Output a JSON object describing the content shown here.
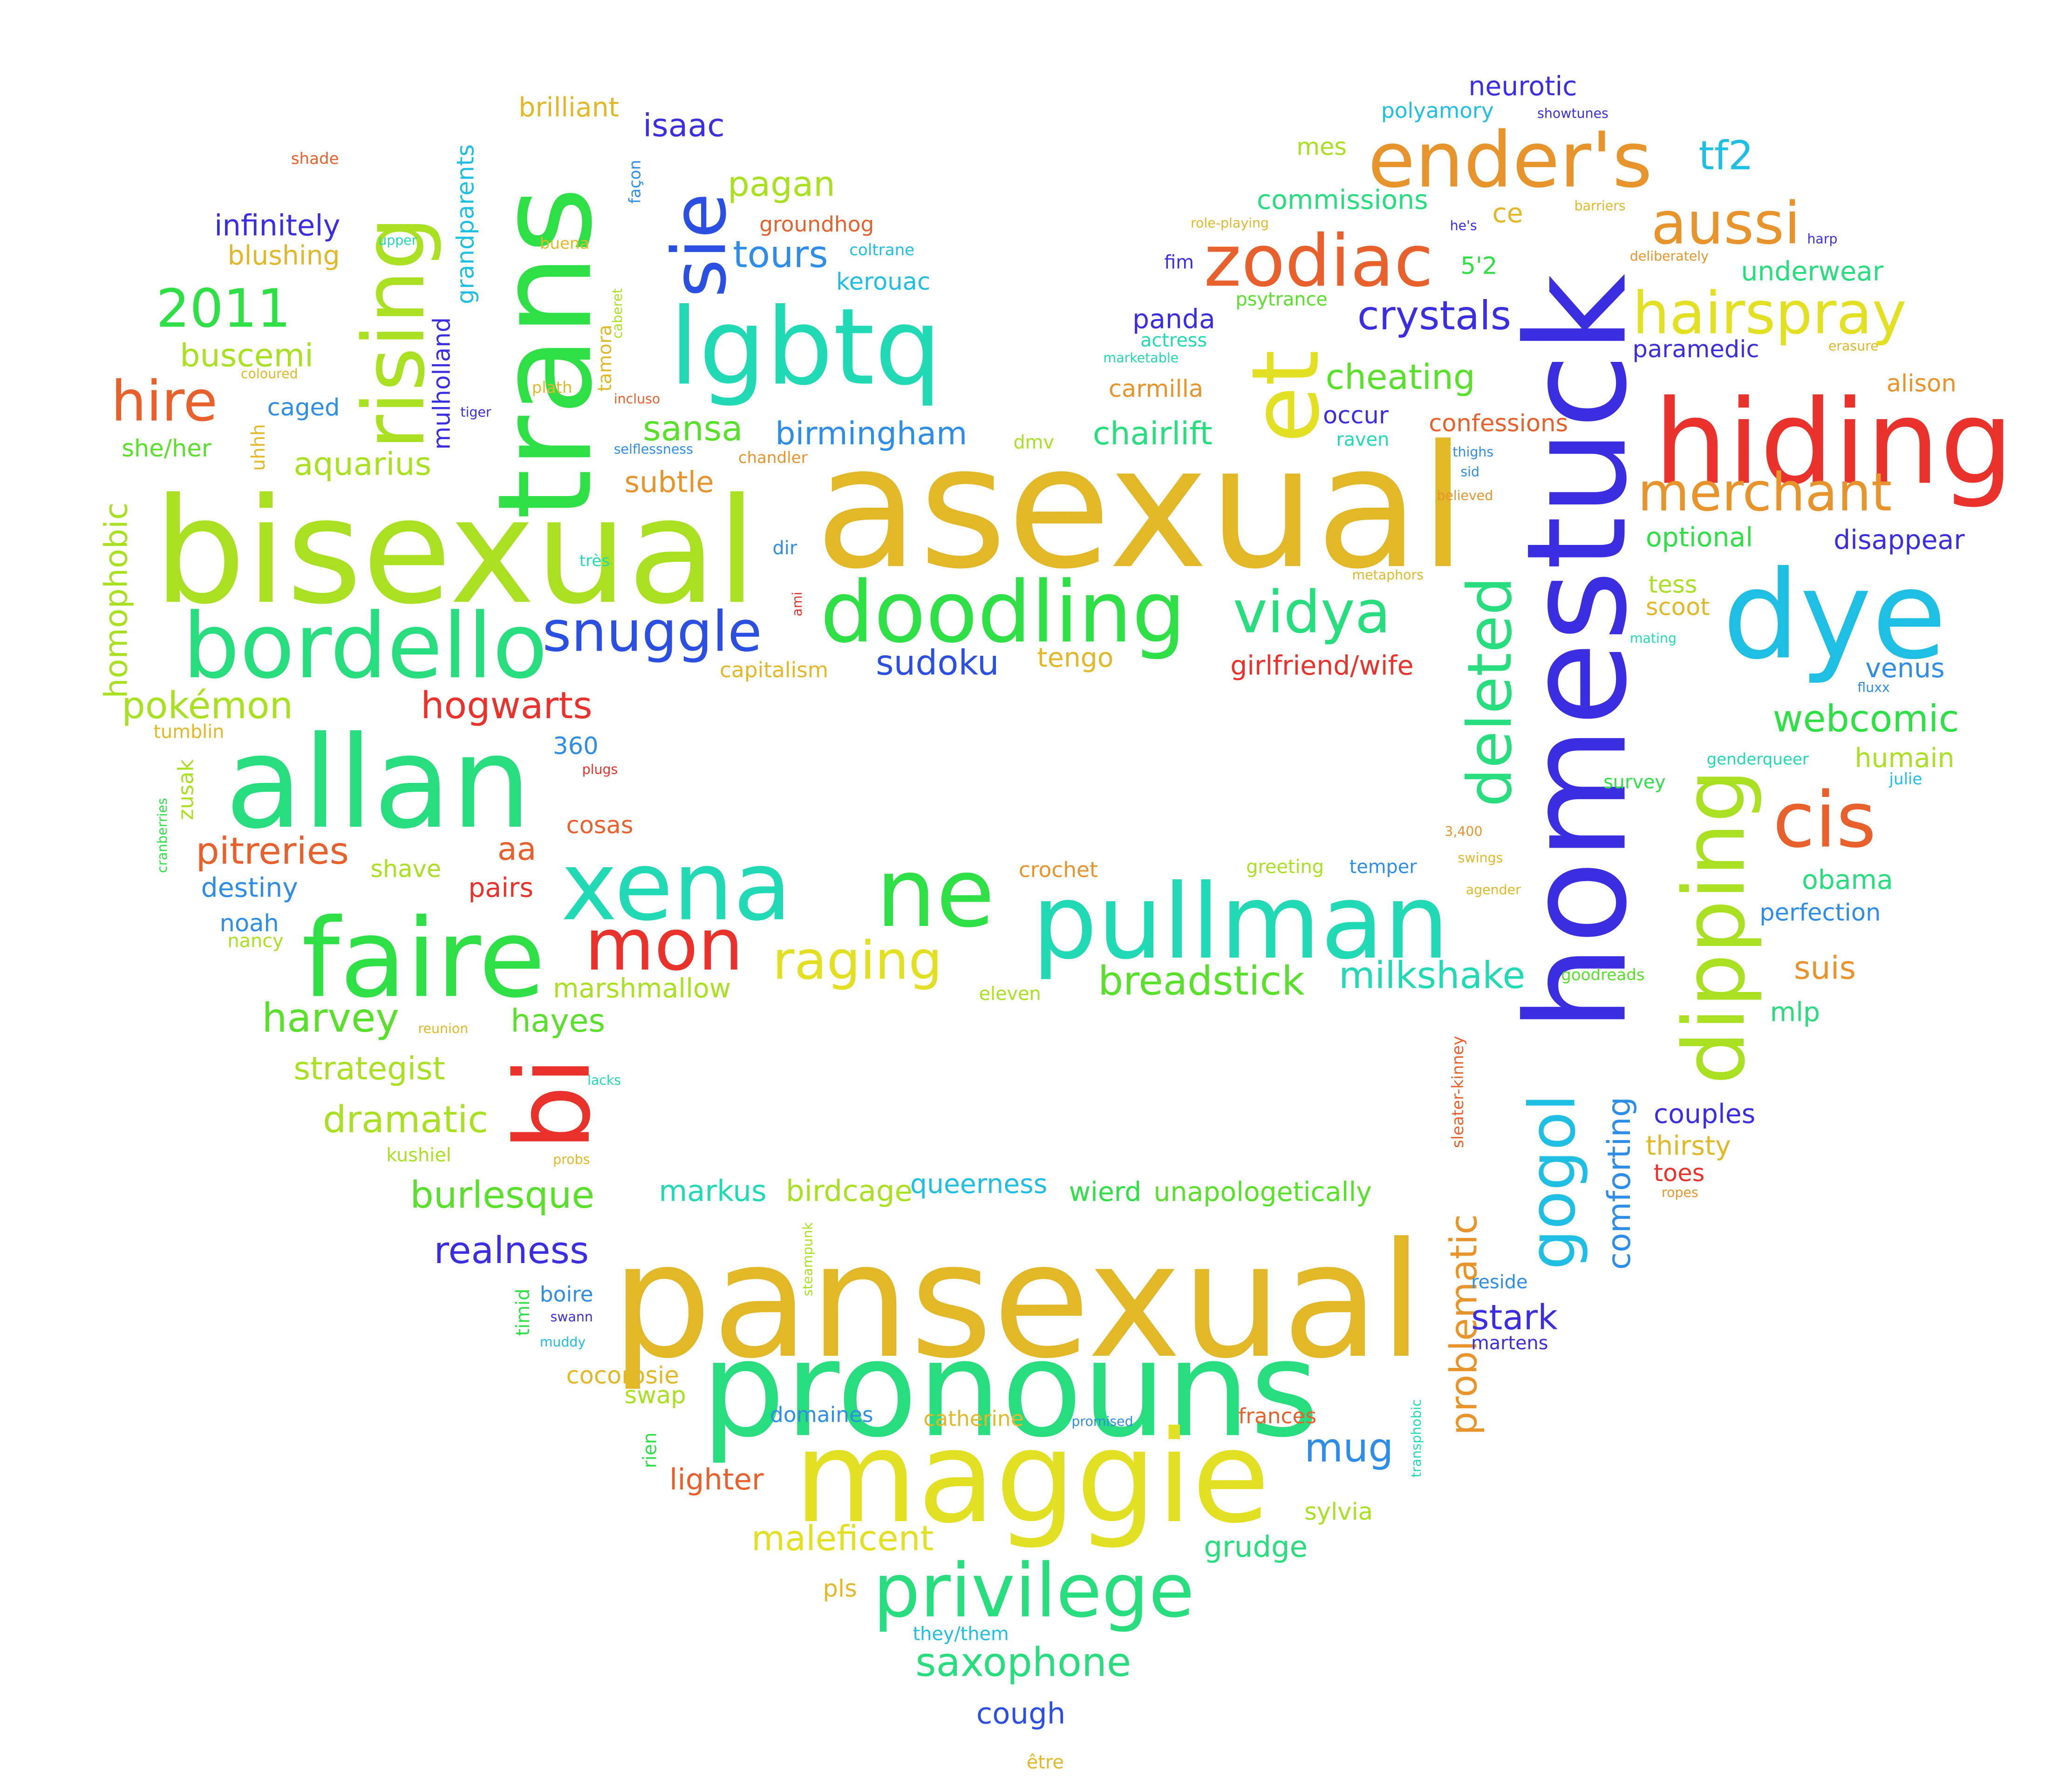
{
  "word_cloud": {
    "colors": {
      "red": "#e8322b",
      "orange_red": "#e8602c",
      "orange": "#e8942c",
      "amber": "#e2b829",
      "yellow": "#e3df22",
      "lime": "#a9e022",
      "green": "#58e02a",
      "bright_green": "#2ee046",
      "spring": "#28dd7e",
      "teal": "#22d9b5",
      "cyan": "#1fbfe3",
      "azure": "#2e8de6",
      "blue": "#2b4fe0",
      "indigo": "#3a2ee0"
    },
    "words": [
      {
        "text": "asexual",
        "color": "amber"
      },
      {
        "text": "bisexual",
        "color": "lime"
      },
      {
        "text": "pansexual",
        "color": "amber"
      },
      {
        "text": "homestuck",
        "color": "indigo"
      },
      {
        "text": "pronouns",
        "color": "spring"
      },
      {
        "text": "trans",
        "color": "bright_green"
      },
      {
        "text": "maggie",
        "color": "yellow"
      },
      {
        "text": "allan",
        "color": "spring"
      },
      {
        "text": "faire",
        "color": "bright_green"
      },
      {
        "text": "pullman",
        "color": "teal"
      },
      {
        "text": "dye",
        "color": "cyan"
      },
      {
        "text": "hiding",
        "color": "red"
      },
      {
        "text": "lgbtq",
        "color": "teal"
      },
      {
        "text": "doodling",
        "color": "bright_green"
      },
      {
        "text": "xena",
        "color": "teal"
      },
      {
        "text": "ne",
        "color": "bright_green"
      },
      {
        "text": "bordello",
        "color": "spring"
      },
      {
        "text": "et",
        "color": "yellow"
      },
      {
        "text": "rising",
        "color": "lime"
      },
      {
        "text": "dipping",
        "color": "lime"
      },
      {
        "text": "bi",
        "color": "red"
      },
      {
        "text": "ender's",
        "color": "orange"
      },
      {
        "text": "zodiac",
        "color": "orange_red"
      },
      {
        "text": "privilege",
        "color": "spring"
      },
      {
        "text": "mon",
        "color": "red"
      },
      {
        "text": "sie",
        "color": "blue"
      },
      {
        "text": "cis",
        "color": "orange_red"
      },
      {
        "text": "deleted",
        "color": "spring"
      },
      {
        "text": "gogol",
        "color": "cyan"
      },
      {
        "text": "vidya",
        "color": "spring"
      },
      {
        "text": "snuggle",
        "color": "blue"
      },
      {
        "text": "raging",
        "color": "yellow"
      },
      {
        "text": "hairspray",
        "color": "yellow"
      },
      {
        "text": "aussi",
        "color": "orange"
      },
      {
        "text": "merchant",
        "color": "orange"
      },
      {
        "text": "hire",
        "color": "orange_red"
      },
      {
        "text": "2011",
        "color": "bright_green"
      },
      {
        "text": "breadstick",
        "color": "green"
      },
      {
        "text": "saxophone",
        "color": "spring"
      },
      {
        "text": "problematic",
        "color": "orange"
      },
      {
        "text": "milkshake",
        "color": "teal"
      },
      {
        "text": "webcomic",
        "color": "bright_green"
      },
      {
        "text": "burlesque",
        "color": "green"
      },
      {
        "text": "realness",
        "color": "indigo"
      },
      {
        "text": "crystals",
        "color": "indigo"
      },
      {
        "text": "maleficent",
        "color": "yellow"
      },
      {
        "text": "dramatic",
        "color": "lime"
      },
      {
        "text": "harvey",
        "color": "green"
      },
      {
        "text": "hogwarts",
        "color": "red"
      },
      {
        "text": "pitreries",
        "color": "orange_red"
      },
      {
        "text": "pokémon",
        "color": "lime"
      },
      {
        "text": "comforting",
        "color": "azure"
      },
      {
        "text": "homophobic",
        "color": "lime"
      },
      {
        "text": "aquarius",
        "color": "lime"
      },
      {
        "text": "sansa",
        "color": "green"
      },
      {
        "text": "birmingham",
        "color": "azure"
      },
      {
        "text": "cheating",
        "color": "green"
      },
      {
        "text": "chairlift",
        "color": "spring"
      },
      {
        "text": "tours",
        "color": "azure"
      },
      {
        "text": "pagan",
        "color": "lime"
      },
      {
        "text": "isaac",
        "color": "indigo"
      },
      {
        "text": "sudoku",
        "color": "blue"
      },
      {
        "text": "lighter",
        "color": "orange_red"
      },
      {
        "text": "mug",
        "color": "azure"
      },
      {
        "text": "stark",
        "color": "indigo"
      },
      {
        "text": "tf2",
        "color": "cyan"
      },
      {
        "text": "disappear",
        "color": "indigo"
      },
      {
        "text": "buscemi",
        "color": "lime"
      },
      {
        "text": "grudge",
        "color": "spring"
      },
      {
        "text": "hayes",
        "color": "green"
      },
      {
        "text": "strategist",
        "color": "lime"
      },
      {
        "text": "marshmallow",
        "color": "lime"
      },
      {
        "text": "suis",
        "color": "orange"
      },
      {
        "text": "aa",
        "color": "orange_red"
      },
      {
        "text": "infinitely",
        "color": "indigo"
      },
      {
        "text": "grandparents",
        "color": "cyan"
      },
      {
        "text": "mulholland",
        "color": "indigo"
      },
      {
        "text": "brilliant",
        "color": "amber"
      },
      {
        "text": "commissions",
        "color": "spring"
      },
      {
        "text": "neurotic",
        "color": "indigo"
      },
      {
        "text": "underwear",
        "color": "spring"
      },
      {
        "text": "carmilla",
        "color": "orange"
      },
      {
        "text": "confessions",
        "color": "orange_red"
      },
      {
        "text": "girlfriend/wife",
        "color": "red"
      },
      {
        "text": "occur",
        "color": "indigo"
      },
      {
        "text": "panda",
        "color": "indigo"
      },
      {
        "text": "paramedic",
        "color": "indigo"
      },
      {
        "text": "alison",
        "color": "orange"
      },
      {
        "text": "optional",
        "color": "bright_green"
      },
      {
        "text": "tess",
        "color": "lime"
      },
      {
        "text": "scoot",
        "color": "amber"
      },
      {
        "text": "venus",
        "color": "azure"
      },
      {
        "text": "humain",
        "color": "lime"
      },
      {
        "text": "obama",
        "color": "spring"
      },
      {
        "text": "perfection",
        "color": "azure"
      },
      {
        "text": "mlp",
        "color": "spring"
      },
      {
        "text": "couples",
        "color": "indigo"
      },
      {
        "text": "thirsty",
        "color": "amber"
      },
      {
        "text": "toes",
        "color": "red"
      },
      {
        "text": "subtle",
        "color": "orange"
      },
      {
        "text": "blushing",
        "color": "amber"
      },
      {
        "text": "caged",
        "color": "azure"
      },
      {
        "text": "she/her",
        "color": "green"
      },
      {
        "text": "destiny",
        "color": "azure"
      },
      {
        "text": "noah",
        "color": "azure"
      },
      {
        "text": "pairs",
        "color": "red"
      },
      {
        "text": "shave",
        "color": "lime"
      },
      {
        "text": "zusak",
        "color": "lime"
      },
      {
        "text": "cosas",
        "color": "orange_red"
      },
      {
        "text": "360",
        "color": "azure"
      },
      {
        "text": "tengo",
        "color": "amber"
      },
      {
        "text": "capitalism",
        "color": "amber"
      },
      {
        "text": "markus",
        "color": "teal"
      },
      {
        "text": "birdcage",
        "color": "lime"
      },
      {
        "text": "queerness",
        "color": "cyan"
      },
      {
        "text": "wierd",
        "color": "bright_green"
      },
      {
        "text": "unapologetically",
        "color": "green"
      },
      {
        "text": "sylvia",
        "color": "lime"
      },
      {
        "text": "cough",
        "color": "blue"
      },
      {
        "text": "cocorosie",
        "color": "amber"
      },
      {
        "text": "swap",
        "color": "lime"
      },
      {
        "text": "domaines",
        "color": "azure"
      },
      {
        "text": "catherine",
        "color": "amber"
      },
      {
        "text": "frances",
        "color": "orange_red"
      },
      {
        "text": "kerouac",
        "color": "cyan"
      },
      {
        "text": "groundhog",
        "color": "orange_red"
      },
      {
        "text": "crochet",
        "color": "orange"
      },
      {
        "text": "temper",
        "color": "azure"
      },
      {
        "text": "greeting",
        "color": "lime"
      },
      {
        "text": "eleven",
        "color": "lime"
      },
      {
        "text": "ce",
        "color": "amber"
      },
      {
        "text": "5'2",
        "color": "bright_green"
      },
      {
        "text": "mes",
        "color": "lime"
      },
      {
        "text": "polyamory",
        "color": "cyan"
      },
      {
        "text": "kushiel",
        "color": "lime"
      },
      {
        "text": "timid",
        "color": "bright_green"
      },
      {
        "text": "boire",
        "color": "azure"
      },
      {
        "text": "rien",
        "color": "bright_green"
      },
      {
        "text": "pls",
        "color": "amber"
      },
      {
        "text": "they/them",
        "color": "cyan"
      },
      {
        "text": "être",
        "color": "amber"
      },
      {
        "text": "uhhh",
        "color": "amber"
      },
      {
        "text": "tamora",
        "color": "amber"
      },
      {
        "text": "dmv",
        "color": "lime"
      },
      {
        "text": "dir",
        "color": "azure"
      },
      {
        "text": "reside",
        "color": "azure"
      },
      {
        "text": "martens",
        "color": "indigo"
      },
      {
        "text": "sleater-kinney",
        "color": "orange_red"
      },
      {
        "text": "fim",
        "color": "indigo"
      },
      {
        "text": "psytrance",
        "color": "green"
      },
      {
        "text": "chandler",
        "color": "orange"
      },
      {
        "text": "raven",
        "color": "teal"
      },
      {
        "text": "thighs",
        "color": "azure"
      },
      {
        "text": "sid",
        "color": "azure"
      },
      {
        "text": "believed",
        "color": "orange"
      },
      {
        "text": "actress",
        "color": "teal"
      },
      {
        "text": "marketable",
        "color": "teal"
      },
      {
        "text": "role-playing",
        "color": "amber"
      },
      {
        "text": "he's",
        "color": "indigo"
      },
      {
        "text": "barriers",
        "color": "amber"
      },
      {
        "text": "showtunes",
        "color": "indigo"
      },
      {
        "text": "deliberately",
        "color": "orange"
      },
      {
        "text": "harp",
        "color": "indigo"
      },
      {
        "text": "erasure",
        "color": "amber"
      },
      {
        "text": "mating",
        "color": "teal"
      },
      {
        "text": "fluxx",
        "color": "azure"
      },
      {
        "text": "genderqueer",
        "color": "teal"
      },
      {
        "text": "julie",
        "color": "cyan"
      },
      {
        "text": "survey",
        "color": "bright_green"
      },
      {
        "text": "3,400",
        "color": "orange"
      },
      {
        "text": "swings",
        "color": "amber"
      },
      {
        "text": "agender",
        "color": "amber"
      },
      {
        "text": "goodreads",
        "color": "green"
      },
      {
        "text": "ropes",
        "color": "orange"
      },
      {
        "text": "metaphors",
        "color": "amber"
      },
      {
        "text": "transphobic",
        "color": "teal"
      },
      {
        "text": "steampunk",
        "color": "lime"
      },
      {
        "text": "promised",
        "color": "azure"
      },
      {
        "text": "muddy",
        "color": "cyan"
      },
      {
        "text": "swann",
        "color": "indigo"
      },
      {
        "text": "lacks",
        "color": "teal"
      },
      {
        "text": "probs",
        "color": "amber"
      },
      {
        "text": "reunion",
        "color": "amber"
      },
      {
        "text": "nancy",
        "color": "lime"
      },
      {
        "text": "cranberries",
        "color": "bright_green"
      },
      {
        "text": "tumblin",
        "color": "amber"
      },
      {
        "text": "plugs",
        "color": "red"
      },
      {
        "text": "ami",
        "color": "red"
      },
      {
        "text": "très",
        "color": "teal"
      },
      {
        "text": "selflessness",
        "color": "azure"
      },
      {
        "text": "tiger",
        "color": "indigo"
      },
      {
        "text": "incluso",
        "color": "orange_red"
      },
      {
        "text": "coloured",
        "color": "amber"
      },
      {
        "text": "plath",
        "color": "amber"
      },
      {
        "text": "caberet",
        "color": "lime"
      },
      {
        "text": "buena",
        "color": "amber"
      },
      {
        "text": "upper",
        "color": "teal"
      },
      {
        "text": "shade",
        "color": "orange_red"
      },
      {
        "text": "façon",
        "color": "azure"
      },
      {
        "text": "coltrane",
        "color": "cyan"
      }
    ]
  }
}
